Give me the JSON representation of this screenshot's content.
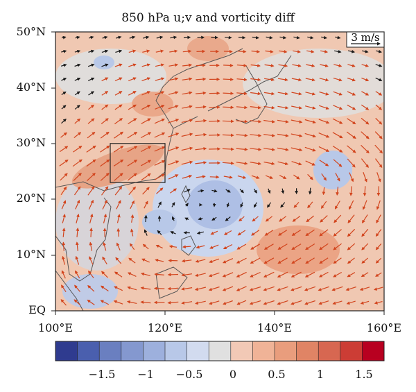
{
  "title": "850 hPa u;v and vorticity diff",
  "axes": {
    "y_ticks": [
      "EQ",
      "10°N",
      "20°N",
      "30°N",
      "40°N",
      "50°N"
    ],
    "x_ticks": [
      "100°E",
      "120°E",
      "140°E",
      "160°E"
    ]
  },
  "reference_vector": {
    "label": "3 m/s"
  },
  "colorbar": {
    "tick_labels": [
      "−1.5",
      "−1",
      "−0.5",
      "0",
      "0.5",
      "1",
      "1.5"
    ],
    "colors": [
      "#2f3b8f",
      "#4a5fae",
      "#6a7fc0",
      "#8498cf",
      "#9db0dd",
      "#b8c8e8",
      "#d2dbef",
      "#e0e0e0",
      "#f2c9b6",
      "#f0b397",
      "#e99d7d",
      "#e08465",
      "#d76751",
      "#cc3d35",
      "#b80020"
    ]
  },
  "map": {
    "lon_range": [
      100,
      160
    ],
    "lat_range": [
      0,
      50
    ],
    "box_region": {
      "lon": [
        110,
        120
      ],
      "lat": [
        23,
        30
      ]
    },
    "colors": {
      "positive": "#d2451e",
      "negative": "#1a1a1a",
      "coast": "#555555"
    }
  }
}
